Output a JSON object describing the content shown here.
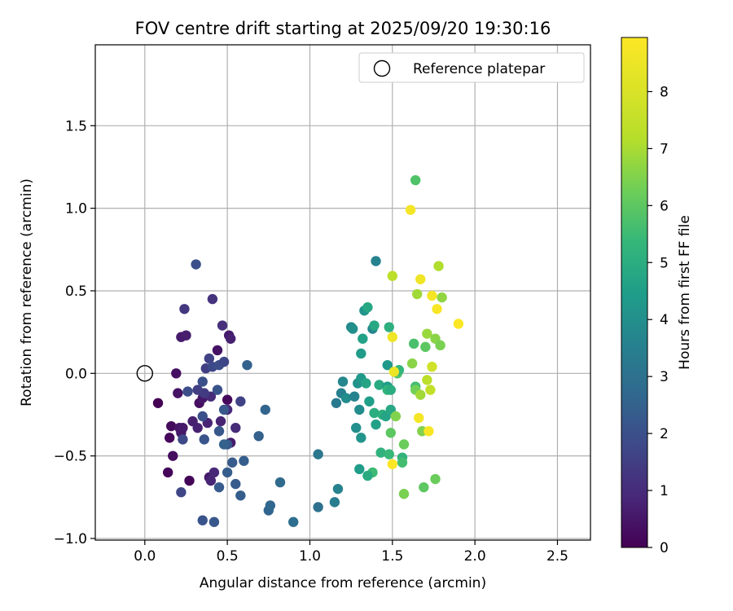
{
  "chart_data": {
    "type": "scatter",
    "title": "FOV centre drift starting at 2025/09/20 19:30:16",
    "xlabel": "Angular distance from reference (arcmin)",
    "ylabel": "Rotation from reference (arcmin)",
    "xlim": [
      -0.3,
      2.7
    ],
    "ylim": [
      -1.01,
      1.99
    ],
    "xticks": [
      0.0,
      0.5,
      1.0,
      1.5,
      2.0,
      2.5
    ],
    "xtick_labels": [
      "0.0",
      "0.5",
      "1.0",
      "1.5",
      "2.0",
      "2.5"
    ],
    "yticks": [
      -1.0,
      -0.5,
      0.0,
      0.5,
      1.0,
      1.5
    ],
    "ytick_labels": [
      "−1.0",
      "−0.5",
      "0.0",
      "0.5",
      "1.0",
      "1.5"
    ],
    "grid": true,
    "legend": {
      "position": "top-right",
      "entries": [
        "Reference platepar"
      ]
    },
    "reference": {
      "x": 0.0,
      "y": 0.0
    },
    "colorbar": {
      "label": "Hours from first FF file",
      "min": 0,
      "max": 8.95,
      "ticks": [
        0,
        1,
        2,
        3,
        4,
        5,
        6,
        7,
        8
      ],
      "tick_labels": [
        "0",
        "1",
        "2",
        "3",
        "4",
        "5",
        "6",
        "7",
        "8"
      ],
      "colormap": "viridis"
    },
    "points": [
      {
        "x": 0.08,
        "y": -0.18,
        "h": 0.0
      },
      {
        "x": 0.14,
        "y": -0.6,
        "h": 0.1
      },
      {
        "x": 0.15,
        "y": -0.39,
        "h": 0.15
      },
      {
        "x": 0.16,
        "y": -0.32,
        "h": 0.2
      },
      {
        "x": 0.17,
        "y": -0.5,
        "h": 0.3
      },
      {
        "x": 0.19,
        "y": 0.0,
        "h": 0.35
      },
      {
        "x": 0.2,
        "y": -0.12,
        "h": 0.4
      },
      {
        "x": 0.21,
        "y": -0.33,
        "h": 0.45
      },
      {
        "x": 0.22,
        "y": -0.36,
        "h": 0.5
      },
      {
        "x": 0.23,
        "y": -0.33,
        "h": 0.55
      },
      {
        "x": 0.22,
        "y": 0.22,
        "h": 0.6
      },
      {
        "x": 0.25,
        "y": 0.23,
        "h": 0.65
      },
      {
        "x": 0.27,
        "y": -0.65,
        "h": 0.1
      },
      {
        "x": 0.29,
        "y": -0.29,
        "h": 0.7
      },
      {
        "x": 0.32,
        "y": -0.33,
        "h": 0.75
      },
      {
        "x": 0.33,
        "y": -0.18,
        "h": 0.3
      },
      {
        "x": 0.35,
        "y": -0.15,
        "h": 0.5
      },
      {
        "x": 0.38,
        "y": -0.3,
        "h": 0.8
      },
      {
        "x": 0.39,
        "y": -0.63,
        "h": 0.55
      },
      {
        "x": 0.4,
        "y": -0.65,
        "h": 0.85
      },
      {
        "x": 0.42,
        "y": -0.6,
        "h": 0.9
      },
      {
        "x": 0.44,
        "y": 0.14,
        "h": 0.4
      },
      {
        "x": 0.46,
        "y": -0.29,
        "h": 0.8
      },
      {
        "x": 0.5,
        "y": -0.16,
        "h": 0.2
      },
      {
        "x": 0.51,
        "y": 0.23,
        "h": 0.6
      },
      {
        "x": 0.52,
        "y": 0.21,
        "h": 0.7
      },
      {
        "x": 0.5,
        "y": -0.22,
        "h": 0.95
      },
      {
        "x": 0.52,
        "y": -0.42,
        "h": 0.6
      },
      {
        "x": 0.55,
        "y": -0.33,
        "h": 1.0
      },
      {
        "x": 0.47,
        "y": 0.29,
        "h": 1.1
      },
      {
        "x": 0.41,
        "y": 0.45,
        "h": 1.2
      },
      {
        "x": 0.24,
        "y": 0.39,
        "h": 1.3
      },
      {
        "x": 0.4,
        "y": -0.14,
        "h": 1.0
      },
      {
        "x": 0.36,
        "y": -0.12,
        "h": 1.4
      },
      {
        "x": 0.39,
        "y": 0.09,
        "h": 1.6
      },
      {
        "x": 0.37,
        "y": 0.03,
        "h": 1.5
      },
      {
        "x": 0.41,
        "y": 0.04,
        "h": 1.8
      },
      {
        "x": 0.45,
        "y": 0.05,
        "h": 1.9
      },
      {
        "x": 0.48,
        "y": 0.07,
        "h": 1.7
      },
      {
        "x": 0.58,
        "y": -0.17,
        "h": 1.6
      },
      {
        "x": 0.32,
        "y": -0.1,
        "h": 1.5
      },
      {
        "x": 0.22,
        "y": -0.72,
        "h": 1.7
      },
      {
        "x": 0.23,
        "y": -0.4,
        "h": 1.8
      },
      {
        "x": 0.26,
        "y": -0.11,
        "h": 1.9
      },
      {
        "x": 0.31,
        "y": 0.66,
        "h": 2.0
      },
      {
        "x": 0.35,
        "y": -0.26,
        "h": 2.0
      },
      {
        "x": 0.36,
        "y": -0.4,
        "h": 2.1
      },
      {
        "x": 0.44,
        "y": -0.1,
        "h": 2.1
      },
      {
        "x": 0.45,
        "y": -0.35,
        "h": 2.2
      },
      {
        "x": 0.5,
        "y": -0.43,
        "h": 2.2
      },
      {
        "x": 0.53,
        "y": -0.54,
        "h": 2.3
      },
      {
        "x": 0.55,
        "y": -0.67,
        "h": 2.3
      },
      {
        "x": 0.58,
        "y": -0.74,
        "h": 2.4
      },
      {
        "x": 0.6,
        "y": -0.53,
        "h": 2.4
      },
      {
        "x": 0.62,
        "y": 0.05,
        "h": 2.5
      },
      {
        "x": 0.69,
        "y": -0.38,
        "h": 2.5
      },
      {
        "x": 0.73,
        "y": -0.22,
        "h": 2.6
      },
      {
        "x": 0.35,
        "y": -0.89,
        "h": 2.1
      },
      {
        "x": 0.42,
        "y": -0.9,
        "h": 2.2
      },
      {
        "x": 0.45,
        "y": -0.69,
        "h": 2.3
      },
      {
        "x": 0.5,
        "y": -0.6,
        "h": 2.4
      },
      {
        "x": 0.48,
        "y": -0.43,
        "h": 2.5
      },
      {
        "x": 0.35,
        "y": -0.05,
        "h": 2.0
      },
      {
        "x": 0.48,
        "y": -0.22,
        "h": 2.2
      },
      {
        "x": 0.75,
        "y": -0.83,
        "h": 2.6
      },
      {
        "x": 0.76,
        "y": -0.8,
        "h": 2.7
      },
      {
        "x": 0.82,
        "y": -0.66,
        "h": 2.8
      },
      {
        "x": 0.9,
        "y": -0.9,
        "h": 2.9
      },
      {
        "x": 1.05,
        "y": -0.81,
        "h": 3.0
      },
      {
        "x": 1.05,
        "y": -0.49,
        "h": 3.2
      },
      {
        "x": 1.15,
        "y": -0.78,
        "h": 3.4
      },
      {
        "x": 1.17,
        "y": -0.7,
        "h": 3.6
      },
      {
        "x": 1.16,
        "y": -0.18,
        "h": 3.3
      },
      {
        "x": 1.19,
        "y": -0.12,
        "h": 3.5
      },
      {
        "x": 1.2,
        "y": -0.05,
        "h": 3.7
      },
      {
        "x": 1.22,
        "y": -0.15,
        "h": 3.9
      },
      {
        "x": 1.25,
        "y": 0.28,
        "h": 3.8
      },
      {
        "x": 1.26,
        "y": 0.27,
        "h": 4.0
      },
      {
        "x": 1.27,
        "y": -0.14,
        "h": 3.6
      },
      {
        "x": 1.28,
        "y": -0.33,
        "h": 4.0
      },
      {
        "x": 1.29,
        "y": -0.06,
        "h": 4.1
      },
      {
        "x": 1.3,
        "y": -0.22,
        "h": 3.9
      },
      {
        "x": 1.31,
        "y": -0.03,
        "h": 4.3
      },
      {
        "x": 1.31,
        "y": 0.12,
        "h": 4.4
      },
      {
        "x": 1.31,
        "y": -0.39,
        "h": 4.2
      },
      {
        "x": 1.32,
        "y": 0.21,
        "h": 4.6
      },
      {
        "x": 1.33,
        "y": 0.38,
        "h": 4.2
      },
      {
        "x": 1.35,
        "y": 0.4,
        "h": 4.8
      },
      {
        "x": 1.34,
        "y": -0.06,
        "h": 4.7
      },
      {
        "x": 1.36,
        "y": -0.17,
        "h": 4.5
      },
      {
        "x": 1.38,
        "y": 0.27,
        "h": 3.7
      },
      {
        "x": 1.39,
        "y": 0.29,
        "h": 4.8
      },
      {
        "x": 1.39,
        "y": -0.24,
        "h": 5.0
      },
      {
        "x": 1.4,
        "y": 0.68,
        "h": 3.6
      },
      {
        "x": 1.4,
        "y": -0.31,
        "h": 4.6
      },
      {
        "x": 1.42,
        "y": -0.07,
        "h": 4.9
      },
      {
        "x": 1.43,
        "y": -0.48,
        "h": 5.2
      },
      {
        "x": 1.44,
        "y": -0.25,
        "h": 5.1
      },
      {
        "x": 1.46,
        "y": -0.26,
        "h": 4.7
      },
      {
        "x": 1.47,
        "y": -0.08,
        "h": 4.4
      },
      {
        "x": 1.47,
        "y": -0.1,
        "h": 5.3
      },
      {
        "x": 1.47,
        "y": 0.05,
        "h": 4.3
      },
      {
        "x": 1.48,
        "y": 0.28,
        "h": 5.1
      },
      {
        "x": 1.48,
        "y": -0.49,
        "h": 5.4
      },
      {
        "x": 1.49,
        "y": -0.22,
        "h": 4.8
      },
      {
        "x": 1.49,
        "y": -0.36,
        "h": 6.0
      },
      {
        "x": 1.49,
        "y": -0.1,
        "h": 5.0
      },
      {
        "x": 1.5,
        "y": 0.59,
        "h": 7.3
      },
      {
        "x": 1.5,
        "y": 0.22,
        "h": 8.6
      },
      {
        "x": 1.52,
        "y": -0.26,
        "h": 6.5
      },
      {
        "x": 1.53,
        "y": 0.0,
        "h": 5.8
      },
      {
        "x": 1.54,
        "y": 0.02,
        "h": 5.3
      },
      {
        "x": 1.56,
        "y": -0.51,
        "h": 5.2
      },
      {
        "x": 1.56,
        "y": -0.54,
        "h": 5.6
      },
      {
        "x": 1.57,
        "y": -0.43,
        "h": 6.2
      },
      {
        "x": 1.57,
        "y": -0.73,
        "h": 6.4
      },
      {
        "x": 1.61,
        "y": 0.99,
        "h": 8.7
      },
      {
        "x": 1.62,
        "y": 0.06,
        "h": 6.6
      },
      {
        "x": 1.63,
        "y": 0.18,
        "h": 5.7
      },
      {
        "x": 1.64,
        "y": 1.17,
        "h": 5.8
      },
      {
        "x": 1.64,
        "y": -0.08,
        "h": 5.6
      },
      {
        "x": 1.64,
        "y": -0.1,
        "h": 6.3
      },
      {
        "x": 1.65,
        "y": 0.48,
        "h": 6.9
      },
      {
        "x": 1.66,
        "y": -0.27,
        "h": 8.7
      },
      {
        "x": 1.67,
        "y": 0.57,
        "h": 8.6
      },
      {
        "x": 1.67,
        "y": -0.13,
        "h": 6.9
      },
      {
        "x": 1.68,
        "y": -0.35,
        "h": 6.5
      },
      {
        "x": 1.69,
        "y": -0.69,
        "h": 6.0
      },
      {
        "x": 1.7,
        "y": 0.16,
        "h": 6.0
      },
      {
        "x": 1.71,
        "y": 0.24,
        "h": 6.8
      },
      {
        "x": 1.71,
        "y": -0.04,
        "h": 7.3
      },
      {
        "x": 1.72,
        "y": -0.35,
        "h": 8.8
      },
      {
        "x": 1.73,
        "y": -0.1,
        "h": 7.5
      },
      {
        "x": 1.74,
        "y": 0.47,
        "h": 8.7
      },
      {
        "x": 1.74,
        "y": 0.04,
        "h": 7.8
      },
      {
        "x": 1.76,
        "y": 0.21,
        "h": 6.6
      },
      {
        "x": 1.76,
        "y": -0.64,
        "h": 6.2
      },
      {
        "x": 1.77,
        "y": 0.39,
        "h": 8.8
      },
      {
        "x": 1.78,
        "y": 0.65,
        "h": 7.1
      },
      {
        "x": 1.79,
        "y": 0.17,
        "h": 6.4
      },
      {
        "x": 1.8,
        "y": 0.46,
        "h": 6.7
      },
      {
        "x": 1.9,
        "y": 0.3,
        "h": 8.9
      },
      {
        "x": 1.51,
        "y": 0.01,
        "h": 8.5
      },
      {
        "x": 1.5,
        "y": -0.55,
        "h": 8.95
      },
      {
        "x": 1.38,
        "y": -0.6,
        "h": 5.5
      },
      {
        "x": 1.35,
        "y": -0.62,
        "h": 4.9
      },
      {
        "x": 1.3,
        "y": -0.58,
        "h": 4.4
      }
    ]
  }
}
